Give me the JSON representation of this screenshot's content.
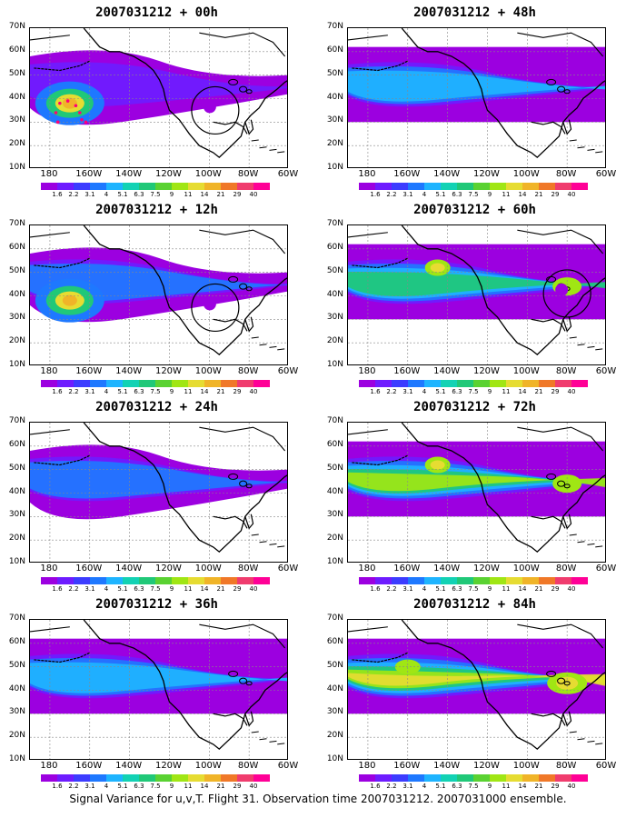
{
  "panels": [
    {
      "title": "2007031212 + 00h",
      "col": 0,
      "row": 0,
      "level": 1,
      "hotspot": "pacific",
      "circle": "gulf",
      "track": true
    },
    {
      "title": "2007031212 + 48h",
      "col": 1,
      "row": 0,
      "level": 3,
      "hotspot": "none",
      "circle": "none",
      "track": false
    },
    {
      "title": "2007031212 + 12h",
      "col": 0,
      "row": 1,
      "level": 2,
      "hotspot": "pacific",
      "circle": "gulf",
      "track": false
    },
    {
      "title": "2007031212 + 60h",
      "col": 1,
      "row": 1,
      "level": 4,
      "hotspot": "alaska",
      "circle": "east",
      "track": false
    },
    {
      "title": "2007031212 + 24h",
      "col": 0,
      "row": 2,
      "level": 2,
      "hotspot": "none",
      "circle": "none",
      "track": false
    },
    {
      "title": "2007031212 + 72h",
      "col": 1,
      "row": 2,
      "level": 5,
      "hotspot": "alaska",
      "circle": "none",
      "track": false
    },
    {
      "title": "2007031212 + 36h",
      "col": 0,
      "row": 3,
      "level": 3,
      "hotspot": "none",
      "circle": "none",
      "track": false
    },
    {
      "title": "2007031212 + 84h",
      "col": 1,
      "row": 3,
      "level": 6,
      "hotspot": "east",
      "circle": "none",
      "track": false
    }
  ],
  "lat_labels": [
    "70N",
    "60N",
    "50N",
    "40N",
    "30N",
    "20N",
    "10N"
  ],
  "lon_labels": [
    "180",
    "160W",
    "140W",
    "120W",
    "100W",
    "80W",
    "60W"
  ],
  "colorbar": {
    "labels": [
      "1.6",
      "2.2",
      "3.1",
      "4",
      "5.1",
      "6.3",
      "7.5",
      "9",
      "11",
      "14",
      "21",
      "29",
      "40"
    ],
    "colors": [
      "#9c00e0",
      "#6e1cff",
      "#3c3cff",
      "#1e78ff",
      "#1eb4ff",
      "#12d2b4",
      "#20c878",
      "#5ad232",
      "#a0e614",
      "#e6dc32",
      "#f0b428",
      "#f07828",
      "#f03c6e",
      "#ff0096"
    ]
  },
  "caption": "Signal Variance for u,v,T. Flight 31. Observation time 2007031212. 2007031000 ensemble."
}
